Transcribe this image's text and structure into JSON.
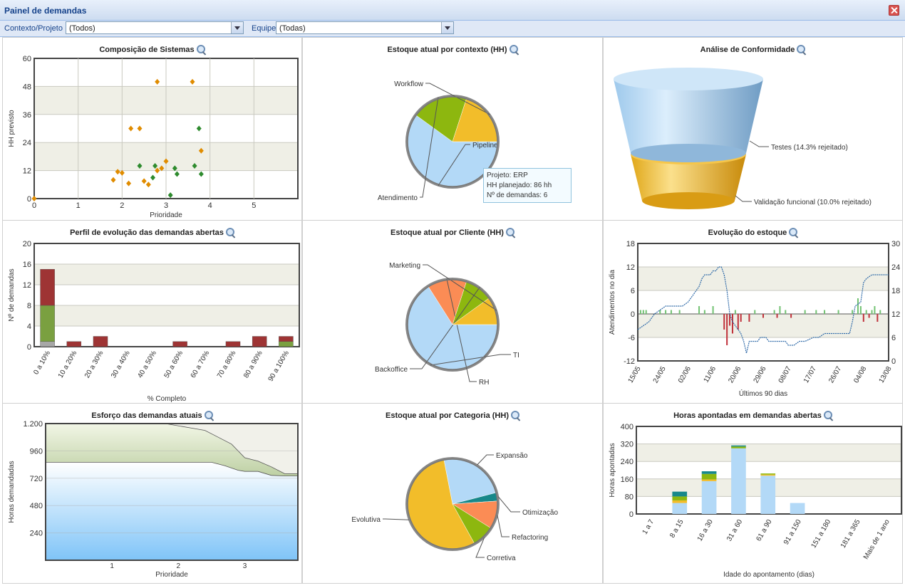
{
  "window": {
    "title": "Painel de demandas"
  },
  "filters": {
    "contexto_label": "Contexto/Projeto",
    "contexto_value": "(Todos)",
    "equipe_label": "Equipe",
    "equipe_value": "(Todas)"
  },
  "panels": [
    {
      "title": "Composição de Sistemas"
    },
    {
      "title": "Estoque atual por contexto (HH)"
    },
    {
      "title": "Análise de Conformidade"
    },
    {
      "title": "Perfil de evolução das demandas abertas"
    },
    {
      "title": "Estoque atual por Cliente (HH)"
    },
    {
      "title": "Evolução do estoque"
    },
    {
      "title": "Esforço das demandas atuais"
    },
    {
      "title": "Estoque atual por Categoria (HH)"
    },
    {
      "title": "Horas apontadas em demandas abertas"
    }
  ],
  "colors": {
    "orange": "#e08c00",
    "green": "#2e8b2e",
    "blue": "#b3d9f7",
    "yellow": "#f2bd2a",
    "lime": "#8db70f",
    "salmon": "#fb8c55",
    "teal": "#17888a",
    "red": "#9e3434",
    "olive": "#7aa040",
    "gray": "#a7a7a7",
    "line": "#2f6aa8"
  },
  "tooltip": {
    "line1": "Projeto: ERP",
    "line2": "HH planejado: 86 hh",
    "line3": "Nº de demandas: 6"
  },
  "chart_data": [
    {
      "type": "scatter",
      "title": "Composição de Sistemas",
      "xlabel": "Prioridade",
      "ylabel": "HH previsto",
      "xlim": [
        0,
        6
      ],
      "ylim": [
        0,
        60
      ],
      "xticks": [
        "0",
        "1",
        "2",
        "3",
        "4",
        "5"
      ],
      "yticks": [
        "0",
        "12",
        "24",
        "36",
        "48",
        "60"
      ],
      "series": [
        {
          "color": "orange",
          "points": [
            [
              0,
              0
            ],
            [
              1.8,
              8
            ],
            [
              1.9,
              11.5
            ],
            [
              2,
              11
            ],
            [
              2.15,
              6.5
            ],
            [
              2.2,
              30
            ],
            [
              2.4,
              30
            ],
            [
              2.5,
              7.5
            ],
            [
              2.6,
              6
            ],
            [
              2.8,
              50
            ],
            [
              2.8,
              12
            ],
            [
              2.9,
              13
            ],
            [
              3,
              16
            ],
            [
              3.6,
              50
            ],
            [
              3.8,
              20.5
            ]
          ]
        },
        {
          "color": "green",
          "points": [
            [
              2.4,
              14
            ],
            [
              2.7,
              9
            ],
            [
              2.75,
              14
            ],
            [
              3.1,
              1.5
            ],
            [
              3.2,
              13
            ],
            [
              3.25,
              10.5
            ],
            [
              3.65,
              14
            ],
            [
              3.75,
              30
            ],
            [
              3.8,
              10.5
            ]
          ]
        }
      ]
    },
    {
      "type": "pie",
      "title": "Estoque atual por contexto (HH)",
      "slices": [
        {
          "label": "Pipeline",
          "value": 60,
          "color": "blue"
        },
        {
          "label": "Atendimento",
          "value": 20,
          "color": "lime"
        },
        {
          "label": "Workflow",
          "value": 20,
          "color": "yellow"
        }
      ]
    },
    {
      "type": "funnel",
      "title": "Análise de Conformidade",
      "stages": [
        {
          "label": "Testes (14.3% rejeitado)"
        },
        {
          "label": "Validação funcional (10.0% rejeitado)"
        }
      ]
    },
    {
      "type": "bar",
      "title": "Perfil de evolução das demandas abertas",
      "xlabel": "% Completo",
      "ylabel": "Nº de demandas",
      "ylim": [
        0,
        20
      ],
      "yticks": [
        "0",
        "4",
        "8",
        "12",
        "16",
        "20"
      ],
      "categories": [
        "0 a 10%",
        "10 a 20%",
        "20 a 30%",
        "30 a 40%",
        "40 a 50%",
        "50 a 60%",
        "60 a 70%",
        "70 a 80%",
        "80 a 90%",
        "90 a 100%"
      ],
      "series": [
        {
          "color": "gray",
          "values": [
            1,
            0,
            0,
            0,
            0,
            0,
            0,
            0,
            0,
            0
          ]
        },
        {
          "color": "olive",
          "values": [
            7,
            0,
            0,
            0,
            0,
            0,
            0,
            0,
            0,
            1
          ]
        },
        {
          "color": "red",
          "values": [
            7,
            1,
            2,
            0,
            0,
            1,
            0,
            1,
            2,
            1
          ]
        }
      ]
    },
    {
      "type": "pie",
      "title": "Estoque atual por Cliente (HH)",
      "slices": [
        {
          "label": "TI",
          "value": 66,
          "color": "blue"
        },
        {
          "label": "RH",
          "value": 14,
          "color": "salmon"
        },
        {
          "label": "Backoffice",
          "value": 10,
          "color": "lime"
        },
        {
          "label": "Marketing",
          "value": 10,
          "color": "yellow"
        }
      ]
    },
    {
      "type": "line",
      "title": "Evolução do estoque",
      "xlabel": "Últimos 90 dias",
      "ylabel": "Atendimentos no dia",
      "ylim": [
        -12,
        18
      ],
      "yticks": [
        "-12",
        "-6",
        "0",
        "6",
        "12",
        "18"
      ],
      "y2lim": [
        0,
        30
      ],
      "y2ticks": [
        "0",
        "6",
        "12",
        "18",
        "24",
        "30"
      ],
      "xticks": [
        "15/05",
        "24/05",
        "02/06",
        "11/06",
        "20/06",
        "29/06",
        "08/07",
        "17/07",
        "26/07",
        "04/08",
        "13/08"
      ],
      "line_points": [
        [
          0,
          8
        ],
        [
          2,
          9
        ],
        [
          4,
          10
        ],
        [
          5,
          11
        ],
        [
          6,
          12
        ],
        [
          8,
          13
        ],
        [
          10,
          14
        ],
        [
          12,
          14
        ],
        [
          16,
          14
        ],
        [
          18,
          15
        ],
        [
          19,
          16
        ],
        [
          20,
          17
        ],
        [
          21,
          18
        ],
        [
          22,
          19
        ],
        [
          23,
          21
        ],
        [
          24,
          22
        ],
        [
          26,
          22
        ],
        [
          27,
          23
        ],
        [
          28,
          23
        ],
        [
          29,
          24
        ],
        [
          30,
          24
        ],
        [
          31,
          22
        ],
        [
          32,
          18
        ],
        [
          33,
          12
        ],
        [
          34,
          10
        ],
        [
          35,
          9
        ],
        [
          36,
          8
        ],
        [
          37,
          7
        ],
        [
          38,
          5
        ],
        [
          39,
          2
        ],
        [
          40,
          5
        ],
        [
          43,
          5
        ],
        [
          44,
          6
        ],
        [
          46,
          6
        ],
        [
          47,
          5
        ],
        [
          50,
          5
        ],
        [
          53,
          5
        ],
        [
          54,
          4
        ],
        [
          56,
          4
        ],
        [
          58,
          5
        ],
        [
          60,
          5
        ],
        [
          63,
          6
        ],
        [
          65,
          6
        ],
        [
          67,
          7
        ],
        [
          69,
          7
        ],
        [
          72,
          7
        ],
        [
          74,
          7
        ],
        [
          76,
          7
        ],
        [
          77,
          10
        ],
        [
          78,
          14
        ],
        [
          80,
          15
        ],
        [
          81,
          20
        ],
        [
          82,
          21
        ],
        [
          84,
          22
        ],
        [
          86,
          22
        ],
        [
          90,
          22
        ]
      ],
      "bars": [
        [
          1,
          1,
          "g"
        ],
        [
          2,
          1,
          "g"
        ],
        [
          3,
          1,
          "g"
        ],
        [
          8,
          1,
          "g"
        ],
        [
          10,
          1,
          "g"
        ],
        [
          12,
          1,
          "g"
        ],
        [
          15,
          1,
          "g"
        ],
        [
          22,
          2,
          "g"
        ],
        [
          24,
          1,
          "g"
        ],
        [
          27,
          2,
          "g"
        ],
        [
          31,
          -4,
          "r"
        ],
        [
          32,
          -8,
          "r"
        ],
        [
          33,
          -3,
          "r"
        ],
        [
          34,
          -5,
          "r"
        ],
        [
          35,
          1,
          "g"
        ],
        [
          36,
          -4,
          "r"
        ],
        [
          37,
          -2,
          "r"
        ],
        [
          40,
          -2,
          "r"
        ],
        [
          42,
          1,
          "g"
        ],
        [
          45,
          -1,
          "r"
        ],
        [
          49,
          1,
          "g"
        ],
        [
          50,
          -1,
          "r"
        ],
        [
          51,
          2,
          "g"
        ],
        [
          53,
          1,
          "g"
        ],
        [
          55,
          -1,
          "r"
        ],
        [
          60,
          1,
          "g"
        ],
        [
          64,
          1,
          "g"
        ],
        [
          67,
          1,
          "g"
        ],
        [
          72,
          1,
          "g"
        ],
        [
          77,
          1,
          "g"
        ],
        [
          79,
          4,
          "g"
        ],
        [
          80,
          2,
          "g"
        ],
        [
          81,
          -2,
          "r"
        ],
        [
          82,
          1,
          "g"
        ],
        [
          83,
          -1,
          "r"
        ],
        [
          84,
          1,
          "g"
        ],
        [
          85,
          2,
          "g"
        ],
        [
          86,
          -2,
          "r"
        ],
        [
          87,
          1,
          "g"
        ]
      ]
    },
    {
      "type": "area",
      "title": "Esforço das demandas atuais",
      "xlabel": "Prioridade",
      "ylabel": "Horas demandadas",
      "ylim": [
        0,
        1200
      ],
      "yticks": [
        "240",
        "480",
        "720",
        "960",
        "1.200"
      ],
      "xlim": [
        0,
        3.8
      ],
      "xticks": [
        "1",
        "2",
        "3"
      ],
      "series": [
        {
          "color": "olive",
          "values": [
            [
              0,
              1200
            ],
            [
              1.8,
              1200
            ],
            [
              2.2,
              1160
            ],
            [
              2.4,
              1140
            ],
            [
              2.6,
              1080
            ],
            [
              2.8,
              1020
            ],
            [
              3,
              900
            ],
            [
              3.2,
              870
            ],
            [
              3.4,
              820
            ],
            [
              3.6,
              760
            ],
            [
              3.8,
              760
            ]
          ]
        },
        {
          "color": "blue",
          "values": [
            [
              0,
              860
            ],
            [
              2.5,
              860
            ],
            [
              2.7,
              830
            ],
            [
              2.9,
              790
            ],
            [
              3,
              780
            ],
            [
              3.2,
              780
            ],
            [
              3.4,
              745
            ],
            [
              3.6,
              740
            ],
            [
              3.8,
              740
            ]
          ]
        }
      ]
    },
    {
      "type": "pie",
      "title": "Estoque atual por Categoria (HH)",
      "slices": [
        {
          "label": "Expansão",
          "value": 24,
          "color": "blue"
        },
        {
          "label": "Otimização",
          "value": 3,
          "color": "teal"
        },
        {
          "label": "Refactoring",
          "value": 10,
          "color": "salmon"
        },
        {
          "label": "Corretiva",
          "value": 8,
          "color": "lime"
        },
        {
          "label": "Evolutiva",
          "value": 55,
          "color": "yellow"
        }
      ]
    },
    {
      "type": "bar",
      "title": "Horas apontadas em demandas abertas",
      "xlabel": "Idade do apontamento (dias)",
      "ylabel": "Horas apontadas",
      "ylim": [
        0,
        400
      ],
      "yticks": [
        "0",
        "80",
        "160",
        "240",
        "320",
        "400"
      ],
      "categories": [
        "1 a 7",
        "8 a 15",
        "16 a 30",
        "31 a 60",
        "61 a 90",
        "91 a 150",
        "151 a 180",
        "181 a 365",
        "Mais de 1 ano"
      ],
      "series": [
        {
          "color": "blue",
          "values": [
            0,
            50,
            150,
            300,
            175,
            50,
            0,
            0,
            0
          ]
        },
        {
          "color": "yellow",
          "values": [
            0,
            12,
            8,
            0,
            5,
            0,
            0,
            0,
            0
          ]
        },
        {
          "color": "lime",
          "values": [
            0,
            18,
            25,
            8,
            5,
            0,
            0,
            0,
            0
          ]
        },
        {
          "color": "teal",
          "values": [
            0,
            22,
            12,
            5,
            0,
            0,
            0,
            0,
            0
          ]
        }
      ]
    }
  ]
}
